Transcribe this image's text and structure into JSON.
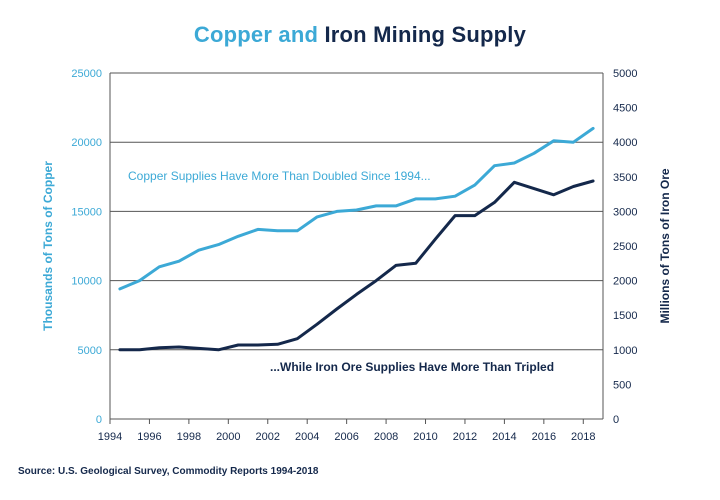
{
  "title": {
    "part1": "Copper and",
    "part2": "Iron Mining Supply"
  },
  "source": "Source: U.S. Geological Survey, Commodity Reports 1994-2018",
  "colors": {
    "copper": "#3ca9d6",
    "iron": "#14284b",
    "grid": "#555555"
  },
  "chart_data": {
    "type": "line",
    "title": "Copper and Iron Mining Supply",
    "xlabel": "",
    "ylabel_left": "Thousands of Tons of Copper",
    "ylabel_right": "Millions of Tons of Iron Ore",
    "xlim": [
      1994,
      2019
    ],
    "ylim_left": [
      0,
      25000
    ],
    "ylim_right": [
      0,
      5000
    ],
    "x_ticks": [
      "1994",
      "1996",
      "1998",
      "2000",
      "2002",
      "2004",
      "2006",
      "2008",
      "2010",
      "2012",
      "2014",
      "2016",
      "2018"
    ],
    "y_ticks_left": [
      "0",
      "5000",
      "10000",
      "15000",
      "20000",
      "25000"
    ],
    "y_ticks_right": [
      "0",
      "500",
      "1000",
      "1500",
      "2000",
      "2500",
      "3000",
      "3500",
      "4000",
      "4500",
      "5000"
    ],
    "grid": "horizontal",
    "x": [
      1994.5,
      1995.5,
      1996.5,
      1997.5,
      1998.5,
      1999.5,
      2000.5,
      2001.5,
      2002.5,
      2003.5,
      2004.5,
      2005.5,
      2006.5,
      2007.5,
      2008.5,
      2009.5,
      2010.5,
      2011.5,
      2012.5,
      2013.5,
      2014.5,
      2015.5,
      2016.5,
      2017.5,
      2018.5
    ],
    "series": [
      {
        "name": "Copper",
        "axis": "left",
        "values": [
          9400,
          10000,
          11000,
          11400,
          12200,
          12600,
          13200,
          13700,
          13600,
          13600,
          14600,
          15000,
          15100,
          15400,
          15400,
          15900,
          15900,
          16100,
          16900,
          18300,
          18500,
          19200,
          20100,
          20000,
          21000
        ]
      },
      {
        "name": "Iron Ore",
        "axis": "right",
        "values": [
          1000,
          1000,
          1030,
          1040,
          1020,
          1000,
          1070,
          1070,
          1080,
          1160,
          1370,
          1590,
          1800,
          2000,
          2220,
          2250,
          2600,
          2940,
          2940,
          3130,
          3420,
          3330,
          3240,
          3360,
          3440
        ]
      }
    ],
    "annotations": [
      "Copper Supplies Have More Than Doubled Since 1994...",
      "...While Iron Ore Supplies Have More Than Tripled"
    ]
  }
}
